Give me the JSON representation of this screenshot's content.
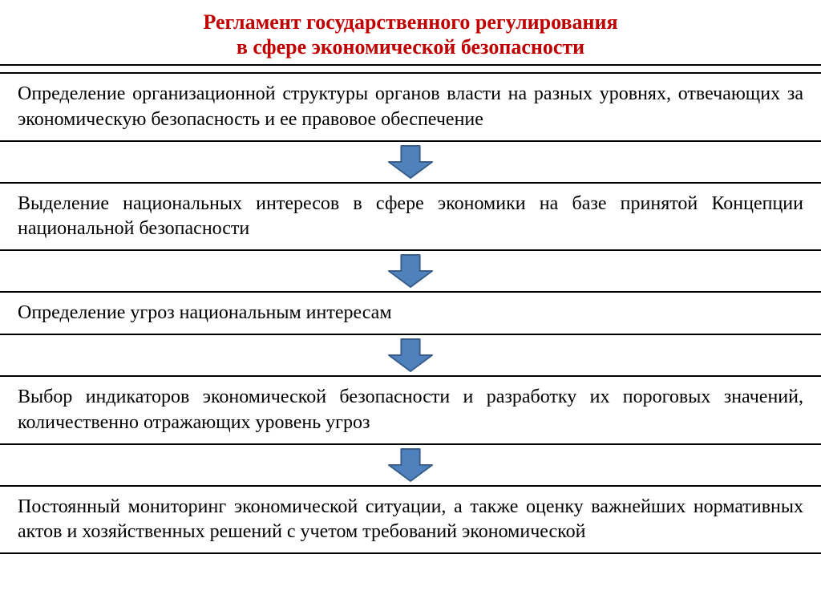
{
  "title": {
    "line1": "Регламент государственного регулирования",
    "line2": "в сфере экономической безопасности",
    "color": "#c00000",
    "fontsize": 26
  },
  "steps": [
    {
      "text": "Определение организационной структуры органов власти на разных уровнях, отвечающих за экономическую безопасность и ее правовое обеспечение"
    },
    {
      "text": "Выделение национальных интересов в сфере экономики на базе принятой Концепции национальной безопасности"
    },
    {
      "text": "Определение угроз национальным интересам"
    },
    {
      "text": "Выбор индикаторов экономической безопасности и разработку их пороговых значений, количественно отражающих уровень угроз"
    },
    {
      "text": "Постоянный мониторинг экономической ситуации, а также оценку важнейших нормативных актов и хозяйственных решений с учетом требований экономической"
    }
  ],
  "style": {
    "step_fontsize": 24,
    "step_color": "#000000",
    "border_color": "#000000",
    "arrow": {
      "fill": "#4f81bd",
      "stroke": "#385d8a",
      "stroke_width": 2,
      "width": 58,
      "height": 44
    },
    "background": "#ffffff"
  }
}
